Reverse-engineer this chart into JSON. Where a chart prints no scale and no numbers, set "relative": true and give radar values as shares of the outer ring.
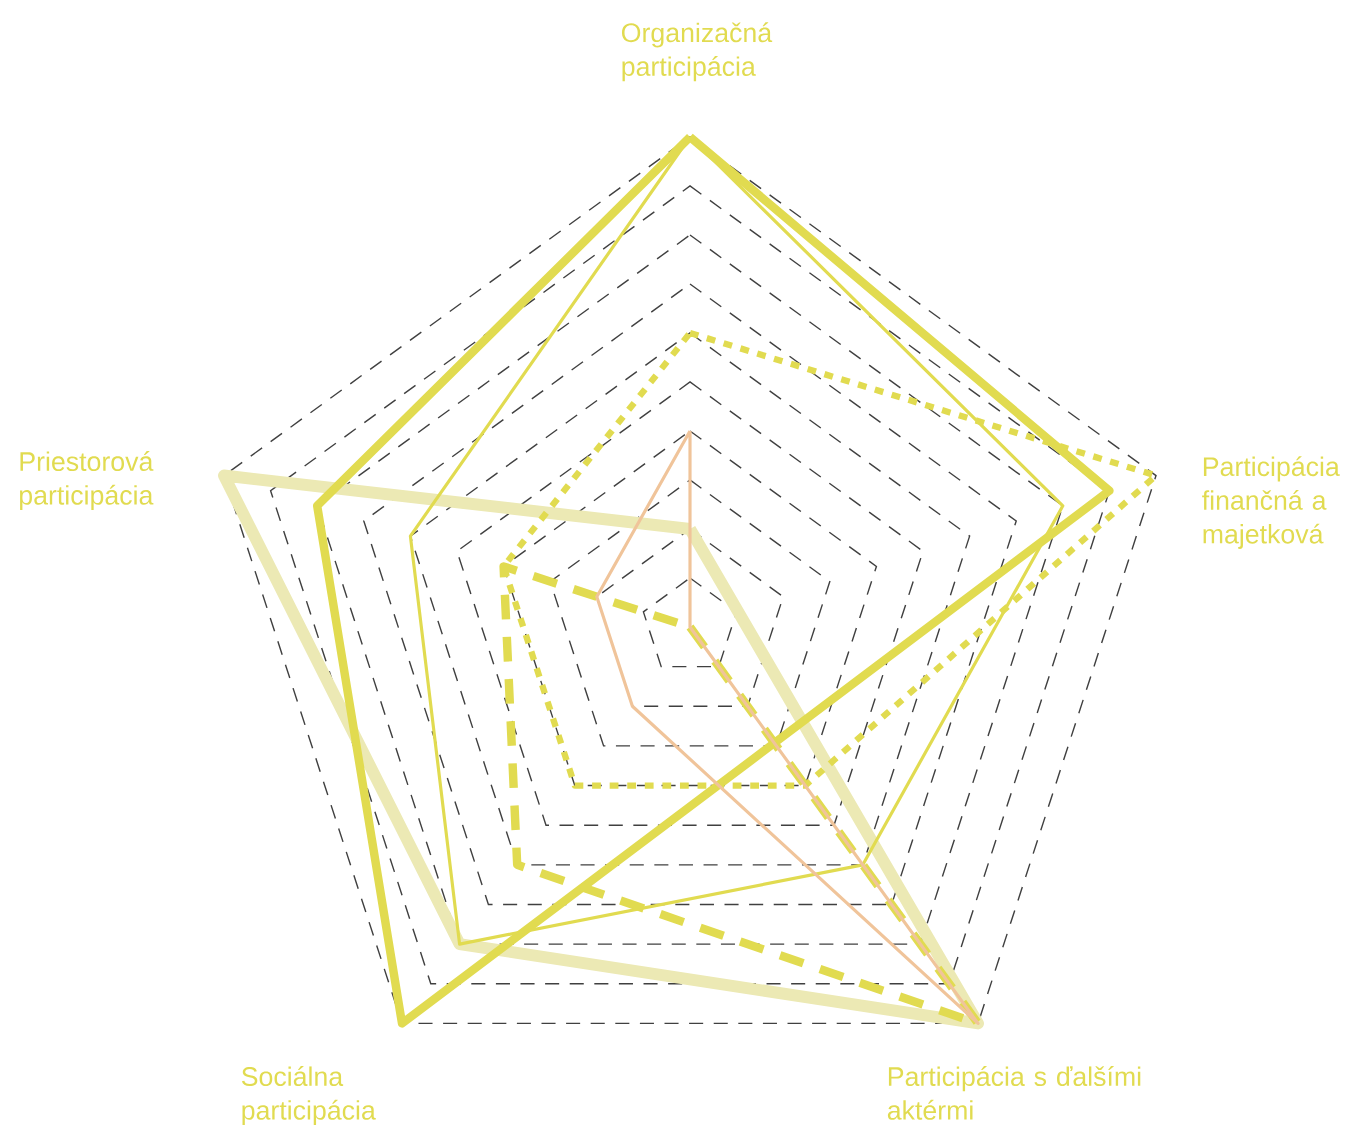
{
  "chart_data": {
    "type": "radar",
    "relative": true,
    "grid": true,
    "categories": [
      "Organizačná participácia",
      "Participácia finančná a majetková",
      "Participácia s ďalšími aktérmi",
      "Sociálna participácia",
      "Priestorová participácia"
    ],
    "series": [
      {
        "color": "#ece9b4",
        "line_style": "solid",
        "values": [
          0.2,
          null,
          1.0,
          0.8,
          1.0
        ]
      },
      {
        "color": "#e1db50",
        "line_style": "solid",
        "values": [
          1.0,
          0.9,
          null,
          1.0,
          0.8
        ]
      },
      {
        "color": "#e1db50",
        "line_style": "solid",
        "values": [
          1.0,
          0.8,
          0.6,
          0.8,
          0.6
        ]
      },
      {
        "color": "#e1db50",
        "line_style": "dotted",
        "values": [
          0.6,
          1.0,
          0.4,
          0.4,
          0.4
        ]
      },
      {
        "color": "#e1db50",
        "line_style": "dashed",
        "values": [
          0.0,
          0.0,
          1.0,
          0.6,
          0.4
        ]
      },
      {
        "color": "#f0c49a",
        "line_style": "solid",
        "values": [
          0.4,
          0.0,
          1.0,
          0.2,
          0.2
        ]
      }
    ]
  }
}
